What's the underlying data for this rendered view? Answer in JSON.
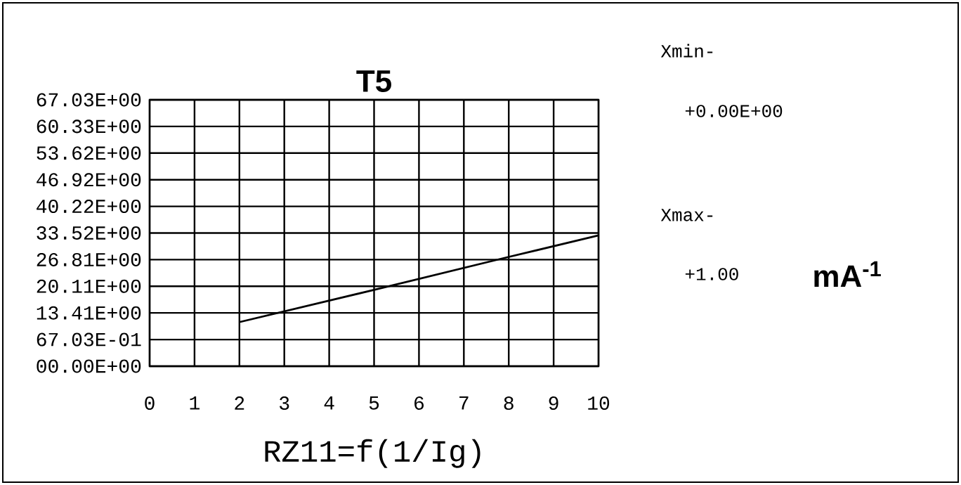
{
  "chart_data": {
    "type": "line",
    "title": "T5",
    "xlabel": "RZ11=f(1/Ig)",
    "x": [
      2,
      5,
      8,
      10
    ],
    "series": [
      {
        "color": "#000000",
        "values": [
          11.1,
          19.2,
          27.5,
          32.9
        ]
      }
    ],
    "xlim": [
      0,
      10
    ],
    "xticks": [
      0,
      1,
      2,
      3,
      4,
      5,
      6,
      7,
      8,
      9,
      10
    ],
    "ylim": [
      0,
      67.03
    ],
    "yticks": [
      {
        "value": 0,
        "label": "00.00E+00"
      },
      {
        "value": 6.703,
        "label": "67.03E-01"
      },
      {
        "value": 13.41,
        "label": "13.41E+00"
      },
      {
        "value": 20.11,
        "label": "20.11E+00"
      },
      {
        "value": 26.81,
        "label": "26.81E+00"
      },
      {
        "value": 33.52,
        "label": "33.52E+00"
      },
      {
        "value": 40.22,
        "label": "40.22E+00"
      },
      {
        "value": 46.92,
        "label": "46.92E+00"
      },
      {
        "value": 53.62,
        "label": "53.62E+00"
      },
      {
        "value": 60.33,
        "label": "60.33E+00"
      },
      {
        "value": 67.03,
        "label": "67.03E+00"
      }
    ],
    "grid": true,
    "marker": "none",
    "line_style": "solid",
    "annotations": [
      "Xmin-",
      "+0.00E+00",
      "Xmax-",
      "+1.00",
      "mA$^{-1}$"
    ]
  }
}
